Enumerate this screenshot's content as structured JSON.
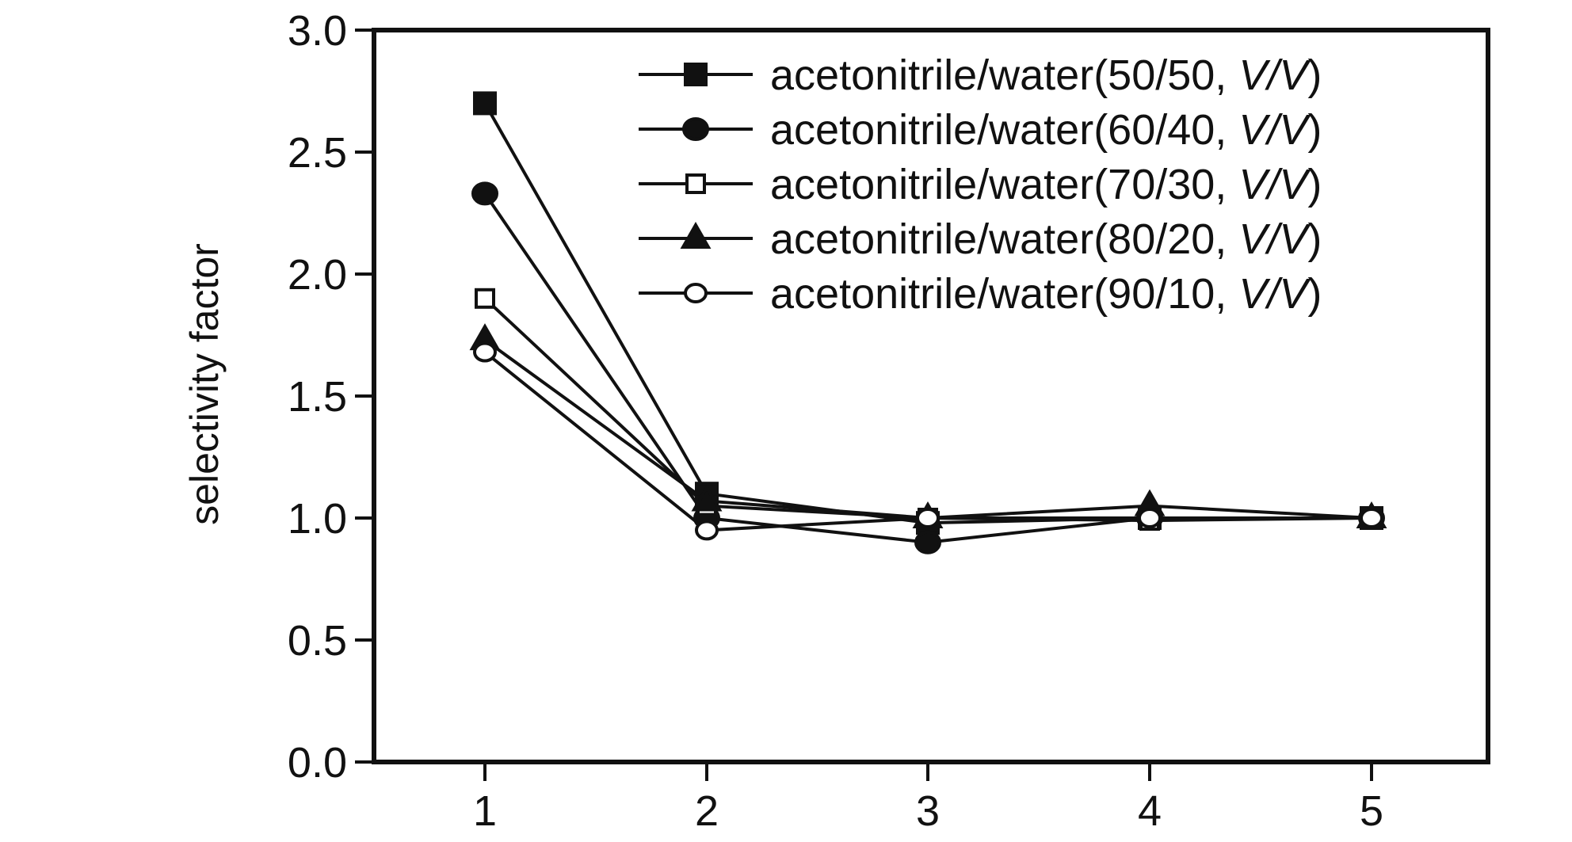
{
  "chart_data": {
    "type": "line",
    "x": [
      1,
      2,
      3,
      4,
      5
    ],
    "xlabel": "",
    "ylabel": "selectivity factor",
    "ylim": [
      0.0,
      3.0
    ],
    "yticks": [
      "0.0",
      "0.5",
      "1.0",
      "1.5",
      "2.0",
      "2.5",
      "3.0"
    ],
    "xticks": [
      "1",
      "2",
      "3",
      "4",
      "5"
    ],
    "grid": false,
    "legend_position": "top-right",
    "series": [
      {
        "name_prefix": "acetonitrile/water(50/50, ",
        "name_italic": "V/V",
        "name_suffix": ")",
        "marker": "square-filled",
        "values": [
          2.7,
          1.1,
          0.98,
          1.0,
          1.0
        ]
      },
      {
        "name_prefix": "acetonitrile/water(60/40, ",
        "name_italic": "V/V",
        "name_suffix": ")",
        "marker": "circle-filled",
        "values": [
          2.33,
          1.0,
          0.9,
          1.0,
          1.0
        ]
      },
      {
        "name_prefix": "acetonitrile/water(70/30, ",
        "name_italic": "V/V",
        "name_suffix": ")",
        "marker": "square-open",
        "values": [
          1.9,
          1.05,
          1.0,
          0.99,
          1.0
        ]
      },
      {
        "name_prefix": "acetonitrile/water(80/20, ",
        "name_italic": "V/V",
        "name_suffix": ")",
        "marker": "triangle-filled",
        "values": [
          1.73,
          1.07,
          1.0,
          1.05,
          1.0
        ]
      },
      {
        "name_prefix": "acetonitrile/water(90/10, ",
        "name_italic": "V/V",
        "name_suffix": ")",
        "marker": "circle-open",
        "values": [
          1.68,
          0.95,
          1.0,
          1.0,
          1.0
        ]
      }
    ]
  }
}
